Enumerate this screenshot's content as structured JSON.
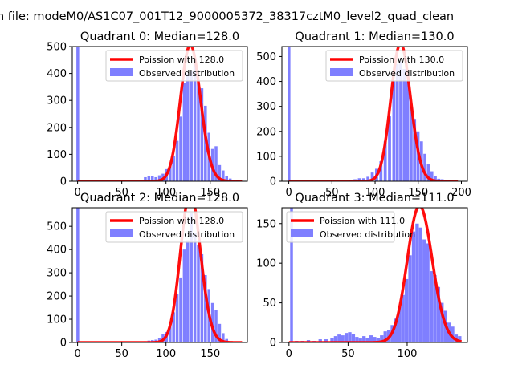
{
  "page": {
    "suptitle": "n file: modeM0/AS1C07_001T12_9000005372_38317cztM0_level2_quad_clean"
  },
  "colors": {
    "histogram": "#7f7fff",
    "poisson": "#ff0000",
    "poisson_highlight": "#ff9a9a"
  },
  "chart_data": [
    {
      "type": "bar",
      "title": "Quadrant 0: Median=128.0",
      "median": 128.0,
      "xlim": [
        -6,
        192
      ],
      "ylim": [
        0,
        500
      ],
      "xticks": [
        0,
        50,
        100,
        150
      ],
      "yticks": [
        0,
        100,
        200,
        300,
        400,
        500
      ],
      "bin_width": 3.2,
      "legend": [
        "Poission with 128.0",
        "Observed distribution"
      ],
      "legend_position": "top-right",
      "spike": {
        "x": 0,
        "value": 500
      },
      "poisson_x_range": [
        0,
        186
      ],
      "bins": [
        [
          75,
          15
        ],
        [
          79,
          18
        ],
        [
          83,
          18
        ],
        [
          87,
          15
        ],
        [
          91,
          22
        ],
        [
          95,
          28
        ],
        [
          99,
          45
        ],
        [
          103,
          65
        ],
        [
          107,
          95
        ],
        [
          111,
          150
        ],
        [
          115,
          240
        ],
        [
          119,
          365
        ],
        [
          123,
          400
        ],
        [
          127,
          410
        ],
        [
          131,
          440
        ],
        [
          135,
          365
        ],
        [
          139,
          345
        ],
        [
          143,
          280
        ],
        [
          147,
          180
        ],
        [
          151,
          120
        ],
        [
          155,
          130
        ],
        [
          159,
          60
        ],
        [
          163,
          40
        ],
        [
          167,
          20
        ],
        [
          171,
          10
        ],
        [
          175,
          5
        ],
        [
          179,
          3
        ]
      ]
    },
    {
      "type": "bar",
      "title": "Quadrant 1: Median=130.0",
      "median": 130.0,
      "xlim": [
        -8,
        207
      ],
      "ylim": [
        0,
        540
      ],
      "xticks": [
        0,
        50,
        100,
        150,
        200
      ],
      "yticks": [
        0,
        100,
        200,
        300,
        400,
        500
      ],
      "bin_width": 3.5,
      "legend": [
        "Poission with 130.0",
        "Observed distribution"
      ],
      "legend_position": "top-right",
      "spike": {
        "x": 0,
        "value": 540
      },
      "poisson_x_range": [
        0,
        196
      ],
      "bins": [
        [
          70,
          5
        ],
        [
          75,
          8
        ],
        [
          80,
          12
        ],
        [
          85,
          12
        ],
        [
          90,
          18
        ],
        [
          95,
          35
        ],
        [
          100,
          50
        ],
        [
          105,
          80
        ],
        [
          110,
          160
        ],
        [
          115,
          260
        ],
        [
          120,
          400
        ],
        [
          124,
          470
        ],
        [
          128,
          480
        ],
        [
          132,
          450
        ],
        [
          136,
          400
        ],
        [
          140,
          300
        ],
        [
          144,
          250
        ],
        [
          148,
          200
        ],
        [
          152,
          160
        ],
        [
          156,
          110
        ],
        [
          160,
          70
        ],
        [
          164,
          40
        ],
        [
          168,
          20
        ],
        [
          172,
          10
        ],
        [
          176,
          8
        ],
        [
          180,
          5
        ],
        [
          184,
          3
        ]
      ]
    },
    {
      "type": "bar",
      "title": "Quadrant 2: Median=128.0",
      "median": 128.0,
      "xlim": [
        -6,
        192
      ],
      "ylim": [
        0,
        580
      ],
      "xticks": [
        0,
        50,
        100,
        150
      ],
      "yticks": [
        0,
        100,
        200,
        300,
        400,
        500
      ],
      "bin_width": 3.2,
      "legend": [
        "Poission with 128.0",
        "Observed distribution"
      ],
      "legend_position": "top-right",
      "spike": {
        "x": 0,
        "value": 580
      },
      "poisson_x_range": [
        0,
        186
      ],
      "bins": [
        [
          75,
          5
        ],
        [
          79,
          8
        ],
        [
          83,
          10
        ],
        [
          87,
          12
        ],
        [
          91,
          20
        ],
        [
          95,
          35
        ],
        [
          99,
          45
        ],
        [
          103,
          70
        ],
        [
          107,
          130
        ],
        [
          111,
          210
        ],
        [
          115,
          280
        ],
        [
          119,
          400
        ],
        [
          123,
          440
        ],
        [
          127,
          560
        ],
        [
          131,
          470
        ],
        [
          135,
          420
        ],
        [
          139,
          380
        ],
        [
          143,
          290
        ],
        [
          147,
          230
        ],
        [
          151,
          170
        ],
        [
          155,
          140
        ],
        [
          159,
          80
        ],
        [
          163,
          40
        ],
        [
          167,
          15
        ],
        [
          171,
          5
        ]
      ]
    },
    {
      "type": "bar",
      "title": "Quadrant 3: Median=111.0",
      "median": 111.0,
      "xlim": [
        -6,
        151
      ],
      "ylim": [
        0,
        170
      ],
      "xticks": [
        0,
        50,
        100
      ],
      "yticks": [
        0,
        50,
        100,
        150
      ],
      "bin_width": 2.9,
      "legend": [
        "Poission with 111.0",
        "Observed distribution"
      ],
      "legend_position": "top-left",
      "spike": {
        "x": 2,
        "value": 170
      },
      "poisson_x_range": [
        0,
        146
      ],
      "bins": [
        [
          5,
          2
        ],
        [
          10,
          2
        ],
        [
          15,
          3
        ],
        [
          20,
          2
        ],
        [
          25,
          4
        ],
        [
          30,
          4
        ],
        [
          35,
          6
        ],
        [
          38,
          8
        ],
        [
          41,
          10
        ],
        [
          44,
          9
        ],
        [
          47,
          12
        ],
        [
          50,
          13
        ],
        [
          53,
          11
        ],
        [
          56,
          7
        ],
        [
          59,
          5
        ],
        [
          62,
          8
        ],
        [
          65,
          6
        ],
        [
          68,
          9
        ],
        [
          71,
          7
        ],
        [
          74,
          6
        ],
        [
          77,
          9
        ],
        [
          80,
          14
        ],
        [
          83,
          16
        ],
        [
          86,
          22
        ],
        [
          89,
          30
        ],
        [
          92,
          45
        ],
        [
          95,
          60
        ],
        [
          98,
          80
        ],
        [
          101,
          110
        ],
        [
          104,
          140
        ],
        [
          107,
          150
        ],
        [
          110,
          145
        ],
        [
          113,
          130
        ],
        [
          116,
          125
        ],
        [
          119,
          90
        ],
        [
          122,
          85
        ],
        [
          125,
          70
        ],
        [
          128,
          50
        ],
        [
          131,
          40
        ],
        [
          134,
          25
        ],
        [
          137,
          20
        ],
        [
          140,
          10
        ],
        [
          143,
          8
        ]
      ]
    }
  ]
}
